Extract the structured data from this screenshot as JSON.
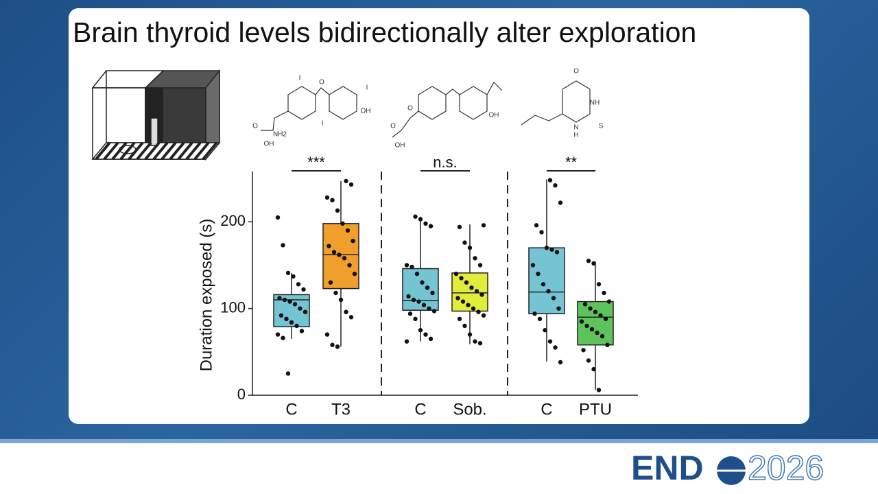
{
  "slide": {
    "title": "Brain thyroid levels bidirectionally alter exploration"
  },
  "structures": [
    {
      "labels": [
        "I",
        "O",
        "I",
        "I",
        "OH",
        "O",
        "OH",
        "NH2"
      ]
    },
    {
      "labels": [
        "O",
        "OH",
        "O",
        "OH"
      ]
    },
    {
      "labels": [
        "O",
        "NH",
        "N",
        "H",
        "S"
      ]
    }
  ],
  "logo": {
    "left": "END",
    "right": "2026"
  },
  "chart_data": {
    "type": "box",
    "ylabel": "Duration exposed (s)",
    "categories": [
      "C",
      "T3",
      "C",
      "Sob.",
      "C",
      "PTU"
    ],
    "annotations": [
      "***",
      "n.s.",
      "**"
    ],
    "ylim": [
      0,
      258
    ],
    "yticks": [
      0,
      100,
      200
    ],
    "boxes": [
      {
        "color": "#74c4d4",
        "min": 65,
        "q1": 79,
        "median": 110,
        "q3": 116,
        "max": 141,
        "points": [
          205,
          173,
          141,
          137,
          128,
          122,
          112,
          110,
          108,
          105,
          100,
          96,
          92,
          88,
          84,
          80,
          74,
          70,
          66,
          25
        ]
      },
      {
        "color": "#f0a02a",
        "min": 56,
        "q1": 123,
        "median": 162,
        "q3": 198,
        "max": 247,
        "points": [
          247,
          243,
          228,
          225,
          213,
          198,
          190,
          178,
          172,
          165,
          162,
          158,
          150,
          140,
          130,
          118,
          110,
          96,
          90,
          70,
          58,
          56
        ]
      },
      {
        "color": "#74c4d4",
        "min": 62,
        "q1": 98,
        "median": 109,
        "q3": 146,
        "max": 206,
        "points": [
          206,
          203,
          198,
          195,
          150,
          148,
          140,
          130,
          124,
          118,
          114,
          110,
          108,
          104,
          100,
          97,
          94,
          88,
          75,
          70,
          65,
          62
        ]
      },
      {
        "color": "#e2ec3a",
        "min": 59,
        "q1": 97,
        "median": 118,
        "q3": 141,
        "max": 197,
        "points": [
          196,
          194,
          176,
          170,
          158,
          150,
          140,
          135,
          130,
          124,
          120,
          116,
          112,
          108,
          104,
          100,
          96,
          92,
          88,
          80,
          70,
          62,
          60
        ]
      },
      {
        "color": "#74c4d4",
        "min": 39,
        "q1": 94,
        "median": 119,
        "q3": 170,
        "max": 249,
        "points": [
          248,
          242,
          222,
          196,
          188,
          170,
          168,
          165,
          150,
          140,
          128,
          120,
          112,
          100,
          94,
          88,
          75,
          62,
          55,
          38
        ]
      },
      {
        "color": "#5cc45a",
        "min": 6,
        "q1": 58,
        "median": 90,
        "q3": 108,
        "max": 154,
        "points": [
          155,
          152,
          128,
          118,
          108,
          105,
          100,
          96,
          92,
          88,
          85,
          80,
          76,
          72,
          68,
          58,
          52,
          40,
          30,
          6
        ]
      }
    ]
  }
}
